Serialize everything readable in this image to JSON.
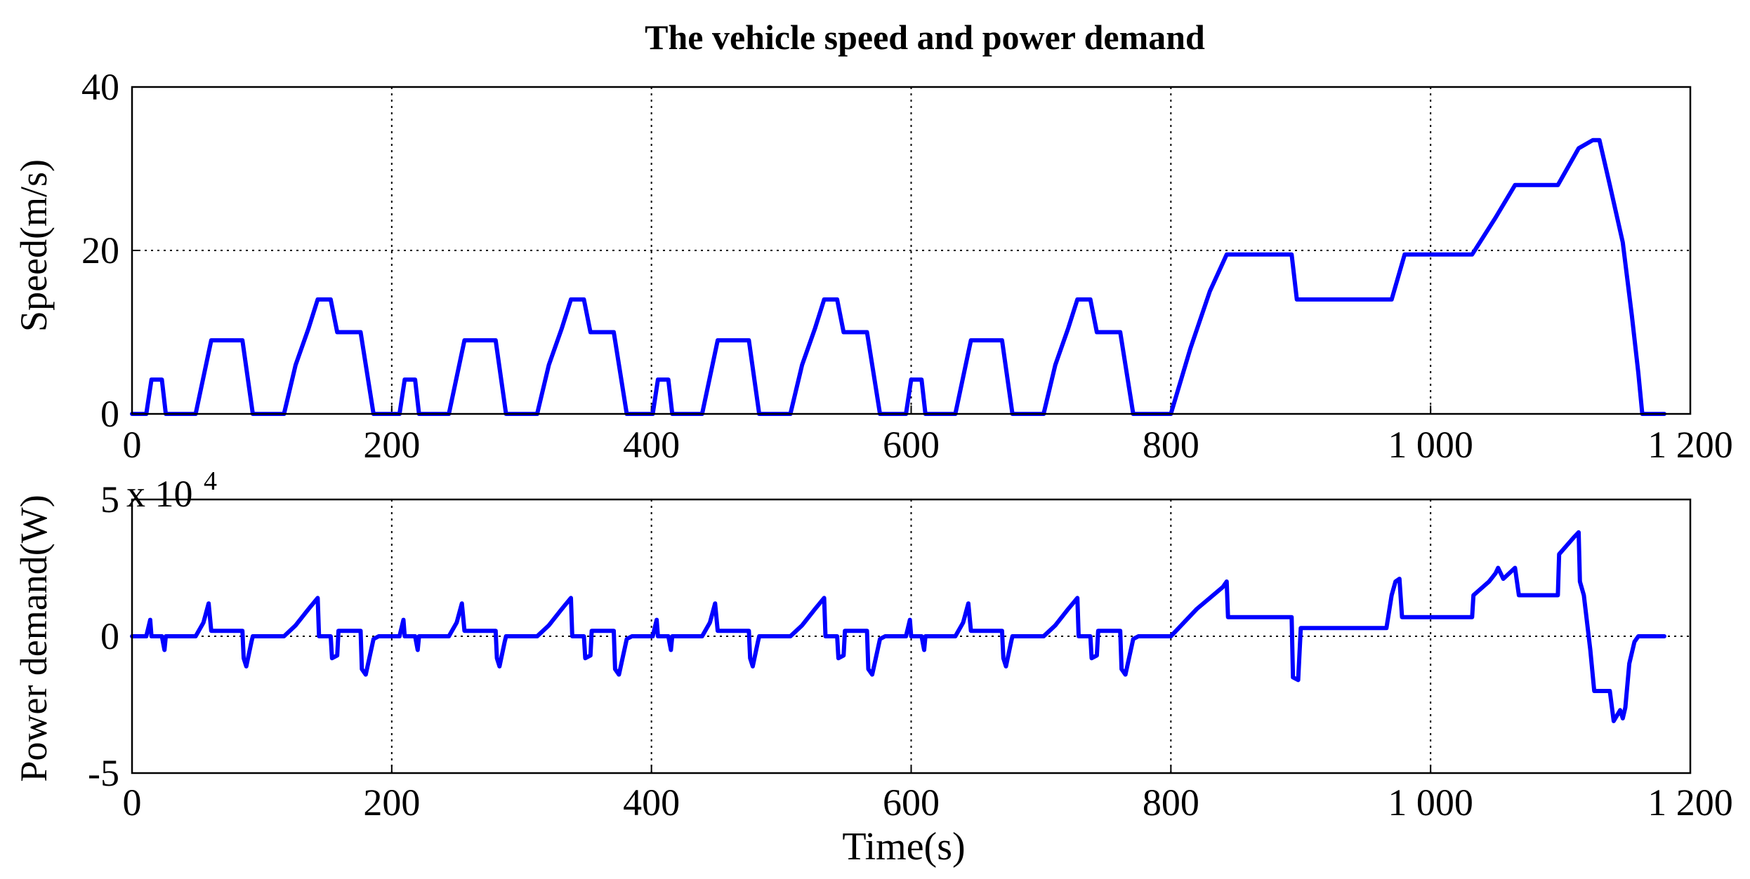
{
  "chart_data": [
    {
      "type": "line",
      "title": "The vehicle speed and power demand",
      "ylabel": "Speed(m/s)",
      "xlim": [
        0,
        1200
      ],
      "ylim": [
        0,
        40
      ],
      "grid": true,
      "x_ticks": [
        0,
        200,
        400,
        600,
        800,
        1000,
        1200
      ],
      "x_tick_labels": [
        "0",
        "200",
        "400",
        "600",
        "800",
        "1 000",
        "1 200"
      ],
      "y_ticks": [
        0,
        20,
        40
      ],
      "y_tick_labels": [
        "0",
        "20",
        "40"
      ],
      "series": [
        {
          "color": "#0000ff",
          "points": [
            [
              0,
              0
            ],
            [
              11,
              0
            ],
            [
              15,
              4.2
            ],
            [
              23,
              4.2
            ],
            [
              26,
              0
            ],
            [
              49,
              0
            ],
            [
              61,
              9
            ],
            [
              85,
              9
            ],
            [
              93,
              0
            ],
            [
              117,
              0
            ],
            [
              126,
              6
            ],
            [
              136,
              10.5
            ],
            [
              143,
              14
            ],
            [
              153,
              14
            ],
            [
              158,
              10
            ],
            [
              176,
              10
            ],
            [
              186,
              0
            ],
            [
              195,
              0
            ],
            [
              206,
              0
            ],
            [
              210,
              4.2
            ],
            [
              218,
              4.2
            ],
            [
              221,
              0
            ],
            [
              244,
              0
            ],
            [
              256,
              9
            ],
            [
              280,
              9
            ],
            [
              288,
              0
            ],
            [
              312,
              0
            ],
            [
              321,
              6
            ],
            [
              331,
              10.5
            ],
            [
              338,
              14
            ],
            [
              348,
              14
            ],
            [
              353,
              10
            ],
            [
              371,
              10
            ],
            [
              381,
              0
            ],
            [
              390,
              0
            ],
            [
              401,
              0
            ],
            [
              405,
              4.2
            ],
            [
              413,
              4.2
            ],
            [
              416,
              0
            ],
            [
              439,
              0
            ],
            [
              451,
              9
            ],
            [
              475,
              9
            ],
            [
              483,
              0
            ],
            [
              507,
              0
            ],
            [
              516,
              6
            ],
            [
              526,
              10.5
            ],
            [
              533,
              14
            ],
            [
              543,
              14
            ],
            [
              548,
              10
            ],
            [
              566,
              10
            ],
            [
              576,
              0
            ],
            [
              585,
              0
            ],
            [
              596,
              0
            ],
            [
              600,
              4.2
            ],
            [
              608,
              4.2
            ],
            [
              611,
              0
            ],
            [
              634,
              0
            ],
            [
              646,
              9
            ],
            [
              670,
              9
            ],
            [
              678,
              0
            ],
            [
              702,
              0
            ],
            [
              711,
              6
            ],
            [
              721,
              10.5
            ],
            [
              728,
              14
            ],
            [
              738,
              14
            ],
            [
              743,
              10
            ],
            [
              761,
              10
            ],
            [
              771,
              0
            ],
            [
              800,
              0
            ],
            [
              815,
              8
            ],
            [
              830,
              15
            ],
            [
              843,
              19.5
            ],
            [
              893,
              19.5
            ],
            [
              897,
              14
            ],
            [
              970,
              14
            ],
            [
              980,
              19.5
            ],
            [
              1032,
              19.5
            ],
            [
              1050,
              24
            ],
            [
              1065,
              28
            ],
            [
              1098,
              28
            ],
            [
              1114,
              32.5
            ],
            [
              1125,
              33.5
            ],
            [
              1130,
              33.5
            ],
            [
              1138,
              28
            ],
            [
              1148,
              21
            ],
            [
              1155,
              12
            ],
            [
              1160,
              5
            ],
            [
              1163,
              0
            ],
            [
              1180,
              0
            ]
          ]
        }
      ]
    },
    {
      "type": "line",
      "ylabel": "Power demand(W)",
      "xlabel": "Time(s)",
      "y_exponent_base": "x 10",
      "y_exponent_power": "4",
      "xlim": [
        0,
        1200
      ],
      "ylim": [
        -5,
        5
      ],
      "grid": true,
      "x_ticks": [
        0,
        200,
        400,
        600,
        800,
        1000,
        1200
      ],
      "x_tick_labels": [
        "0",
        "200",
        "400",
        "600",
        "800",
        "1 000",
        "1 200"
      ],
      "y_ticks": [
        -5,
        0,
        5
      ],
      "y_tick_labels": [
        "-5",
        "0",
        "5"
      ],
      "series": [
        {
          "color": "#0000ff",
          "points": [
            [
              0,
              0
            ],
            [
              11,
              0
            ],
            [
              14,
              0.6
            ],
            [
              15,
              0
            ],
            [
              23,
              0
            ],
            [
              25,
              -0.5
            ],
            [
              26,
              0
            ],
            [
              49,
              0
            ],
            [
              55,
              0.5
            ],
            [
              59,
              1.2
            ],
            [
              61,
              0.2
            ],
            [
              85,
              0.2
            ],
            [
              86,
              -0.8
            ],
            [
              88,
              -1.1
            ],
            [
              92,
              -0.2
            ],
            [
              93,
              0
            ],
            [
              117,
              0
            ],
            [
              126,
              0.4
            ],
            [
              136,
              1
            ],
            [
              143,
              1.4
            ],
            [
              144,
              0
            ],
            [
              153,
              0
            ],
            [
              154,
              -0.8
            ],
            [
              158,
              -0.7
            ],
            [
              159,
              0.2
            ],
            [
              176,
              0.2
            ],
            [
              177,
              -1.2
            ],
            [
              180,
              -1.4
            ],
            [
              186,
              -0.1
            ],
            [
              190,
              0
            ],
            [
              195,
              0
            ],
            [
              206,
              0
            ],
            [
              209,
              0.6
            ],
            [
              210,
              0
            ],
            [
              218,
              0
            ],
            [
              220,
              -0.5
            ],
            [
              221,
              0
            ],
            [
              244,
              0
            ],
            [
              250,
              0.5
            ],
            [
              254,
              1.2
            ],
            [
              256,
              0.2
            ],
            [
              280,
              0.2
            ],
            [
              281,
              -0.8
            ],
            [
              283,
              -1.1
            ],
            [
              287,
              -0.2
            ],
            [
              288,
              0
            ],
            [
              312,
              0
            ],
            [
              321,
              0.4
            ],
            [
              331,
              1
            ],
            [
              338,
              1.4
            ],
            [
              339,
              0
            ],
            [
              348,
              0
            ],
            [
              349,
              -0.8
            ],
            [
              353,
              -0.7
            ],
            [
              354,
              0.2
            ],
            [
              371,
              0.2
            ],
            [
              372,
              -1.2
            ],
            [
              375,
              -1.4
            ],
            [
              381,
              -0.1
            ],
            [
              385,
              0
            ],
            [
              390,
              0
            ],
            [
              401,
              0
            ],
            [
              404,
              0.6
            ],
            [
              405,
              0
            ],
            [
              413,
              0
            ],
            [
              415,
              -0.5
            ],
            [
              416,
              0
            ],
            [
              439,
              0
            ],
            [
              445,
              0.5
            ],
            [
              449,
              1.2
            ],
            [
              451,
              0.2
            ],
            [
              475,
              0.2
            ],
            [
              476,
              -0.8
            ],
            [
              478,
              -1.1
            ],
            [
              482,
              -0.2
            ],
            [
              483,
              0
            ],
            [
              507,
              0
            ],
            [
              516,
              0.4
            ],
            [
              526,
              1
            ],
            [
              533,
              1.4
            ],
            [
              534,
              0
            ],
            [
              543,
              0
            ],
            [
              544,
              -0.8
            ],
            [
              548,
              -0.7
            ],
            [
              549,
              0.2
            ],
            [
              566,
              0.2
            ],
            [
              567,
              -1.2
            ],
            [
              570,
              -1.4
            ],
            [
              576,
              -0.1
            ],
            [
              580,
              0
            ],
            [
              585,
              0
            ],
            [
              596,
              0
            ],
            [
              599,
              0.6
            ],
            [
              600,
              0
            ],
            [
              608,
              0
            ],
            [
              610,
              -0.5
            ],
            [
              611,
              0
            ],
            [
              634,
              0
            ],
            [
              640,
              0.5
            ],
            [
              644,
              1.2
            ],
            [
              646,
              0.2
            ],
            [
              670,
              0.2
            ],
            [
              671,
              -0.8
            ],
            [
              673,
              -1.1
            ],
            [
              677,
              -0.2
            ],
            [
              678,
              0
            ],
            [
              702,
              0
            ],
            [
              711,
              0.4
            ],
            [
              721,
              1
            ],
            [
              728,
              1.4
            ],
            [
              729,
              0
            ],
            [
              738,
              0
            ],
            [
              739,
              -0.8
            ],
            [
              743,
              -0.7
            ],
            [
              744,
              0.2
            ],
            [
              761,
              0.2
            ],
            [
              762,
              -1.2
            ],
            [
              765,
              -1.4
            ],
            [
              771,
              -0.1
            ],
            [
              775,
              0
            ],
            [
              800,
              0
            ],
            [
              810,
              0.5
            ],
            [
              820,
              1.0
            ],
            [
              830,
              1.4
            ],
            [
              840,
              1.8
            ],
            [
              843,
              2.0
            ],
            [
              844,
              0.7
            ],
            [
              893,
              0.7
            ],
            [
              894,
              -1.5
            ],
            [
              898,
              -1.6
            ],
            [
              900,
              0.3
            ],
            [
              966,
              0.3
            ],
            [
              970,
              1.5
            ],
            [
              973,
              2.0
            ],
            [
              976,
              2.1
            ],
            [
              978,
              0.7
            ],
            [
              1032,
              0.7
            ],
            [
              1033,
              1.5
            ],
            [
              1045,
              2.0
            ],
            [
              1050,
              2.3
            ],
            [
              1052,
              2.5
            ],
            [
              1056,
              2.1
            ],
            [
              1065,
              2.5
            ],
            [
              1068,
              1.5
            ],
            [
              1098,
              1.5
            ],
            [
              1099,
              3.0
            ],
            [
              1110,
              3.6
            ],
            [
              1114,
              3.8
            ],
            [
              1115,
              2.0
            ],
            [
              1118,
              1.5
            ],
            [
              1123,
              -0.5
            ],
            [
              1126,
              -2.0
            ],
            [
              1138,
              -2.0
            ],
            [
              1141,
              -3.1
            ],
            [
              1146,
              -2.7
            ],
            [
              1148,
              -3.0
            ],
            [
              1150,
              -2.6
            ],
            [
              1153,
              -1.0
            ],
            [
              1157,
              -0.2
            ],
            [
              1160,
              0
            ],
            [
              1180,
              0
            ]
          ]
        }
      ]
    }
  ]
}
